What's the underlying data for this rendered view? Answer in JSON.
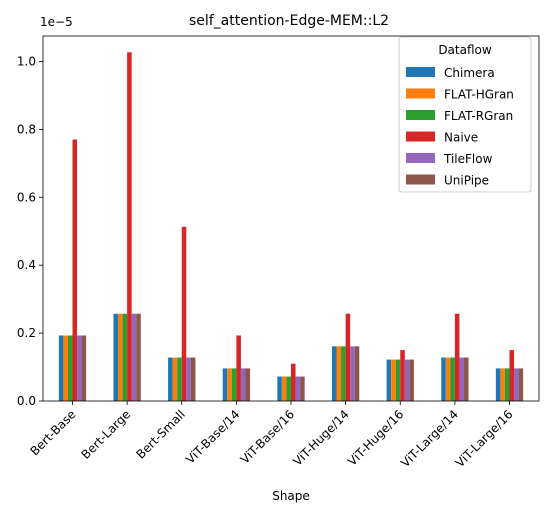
{
  "chart_data": {
    "type": "bar",
    "title": "self_attention-Edge-MEM::L2",
    "xlabel": "Shape",
    "ylabel": "",
    "y_scale_label": "1e−5",
    "ylim": [
      0,
      1.075
    ],
    "yticks": [
      0.0,
      0.2,
      0.4,
      0.6,
      0.8,
      1.0
    ],
    "ytick_labels": [
      "0.0",
      "0.2",
      "0.4",
      "0.6",
      "0.8",
      "1.0"
    ],
    "categories": [
      "Bert-Base",
      "Bert-Large",
      "Bert-Small",
      "ViT-Base/14",
      "ViT-Base/16",
      "ViT-Huge/14",
      "ViT-Huge/16",
      "ViT-Large/14",
      "ViT-Large/16"
    ],
    "legend_title": "Dataflow",
    "legend_position": "top-right",
    "grid": false,
    "series": [
      {
        "name": "Chimera",
        "color": "#1f77b4",
        "values": [
          0.193,
          0.257,
          0.128,
          0.096,
          0.072,
          0.161,
          0.122,
          0.128,
          0.096
        ]
      },
      {
        "name": "FLAT-HGran",
        "color": "#ff7f0e",
        "values": [
          0.193,
          0.257,
          0.128,
          0.096,
          0.072,
          0.161,
          0.122,
          0.128,
          0.096
        ]
      },
      {
        "name": "FLAT-RGran",
        "color": "#2ca02c",
        "values": [
          0.193,
          0.257,
          0.128,
          0.096,
          0.072,
          0.161,
          0.122,
          0.128,
          0.096
        ]
      },
      {
        "name": "Naive",
        "color": "#d62728",
        "values": [
          0.77,
          1.027,
          0.513,
          0.193,
          0.11,
          0.257,
          0.15,
          0.257,
          0.15
        ]
      },
      {
        "name": "TileFlow",
        "color": "#9467bd",
        "values": [
          0.193,
          0.257,
          0.128,
          0.096,
          0.072,
          0.161,
          0.122,
          0.128,
          0.096
        ]
      },
      {
        "name": "UniPipe",
        "color": "#8c564b",
        "values": [
          0.193,
          0.257,
          0.128,
          0.096,
          0.072,
          0.161,
          0.122,
          0.128,
          0.096
        ]
      }
    ]
  }
}
